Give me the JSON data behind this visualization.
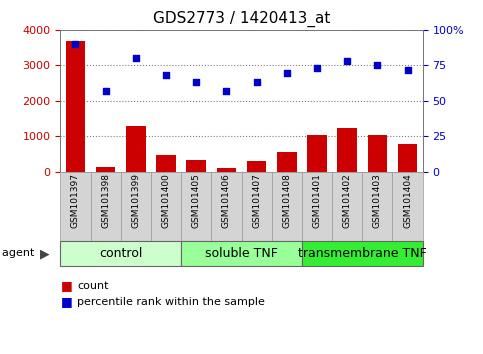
{
  "title": "GDS2773 / 1420413_at",
  "categories": [
    "GSM101397",
    "GSM101398",
    "GSM101399",
    "GSM101400",
    "GSM101405",
    "GSM101406",
    "GSM101407",
    "GSM101408",
    "GSM101401",
    "GSM101402",
    "GSM101403",
    "GSM101404"
  ],
  "counts": [
    3700,
    120,
    1280,
    480,
    330,
    110,
    300,
    560,
    1050,
    1240,
    1030,
    780
  ],
  "percentiles": [
    90,
    57,
    80,
    68,
    63,
    57,
    63,
    70,
    73,
    78,
    75,
    72
  ],
  "count_color": "#cc0000",
  "percentile_color": "#0000cc",
  "ylim_left": [
    0,
    4000
  ],
  "ylim_right": [
    0,
    100
  ],
  "yticks_left": [
    0,
    1000,
    2000,
    3000,
    4000
  ],
  "yticks_right": [
    0,
    25,
    50,
    75,
    100
  ],
  "yticklabels_right": [
    "0",
    "25",
    "50",
    "75",
    "100%"
  ],
  "groups": [
    {
      "label": "control",
      "start": 0,
      "end": 4,
      "color": "#ccffcc"
    },
    {
      "label": "soluble TNF",
      "start": 4,
      "end": 8,
      "color": "#99ff99"
    },
    {
      "label": "transmembrane TNF",
      "start": 8,
      "end": 12,
      "color": "#33ee33"
    }
  ],
  "agent_label": "agent",
  "legend_count_label": "count",
  "legend_percentile_label": "percentile rank within the sample",
  "bar_width": 0.65,
  "title_fontsize": 11,
  "axis_fontsize": 8,
  "tick_label_fontsize": 6.5,
  "group_label_fontsize": 9,
  "cell_color": "#d4d4d4",
  "cell_edge_color": "#999999",
  "grid_linestyle": "dotted",
  "grid_color": "#000000",
  "grid_alpha": 0.5
}
